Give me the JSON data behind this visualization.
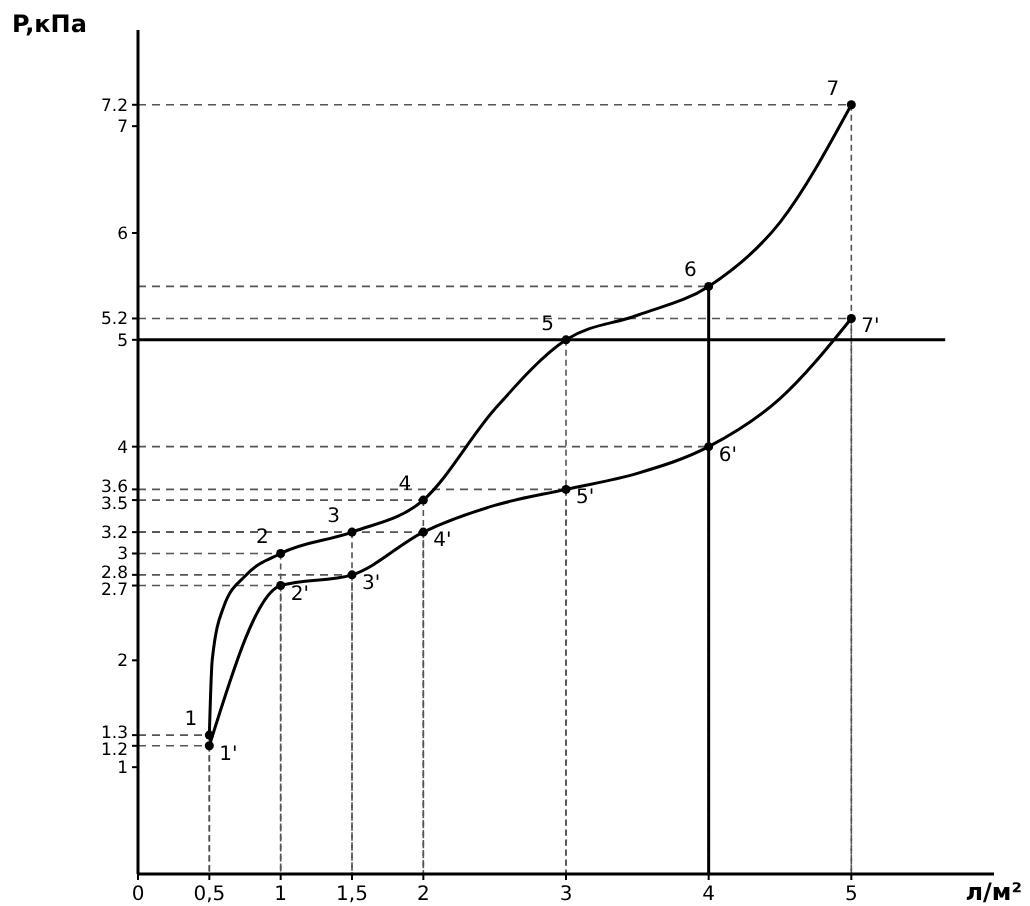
{
  "chart_data": {
    "type": "line",
    "xlabel": "л/м²",
    "ylabel": "P,кПа",
    "xlim": [
      0,
      6
    ],
    "ylim": [
      0,
      7.9
    ],
    "xticks": [
      0,
      {
        "value": 0.5,
        "label": "0,5"
      },
      1,
      {
        "value": 1.5,
        "label": "1,5"
      },
      2,
      3,
      4,
      5
    ],
    "yticks": [
      1,
      1.2,
      1.3,
      2,
      2.7,
      2.8,
      3,
      3.2,
      3.5,
      3.6,
      4,
      5,
      5.2,
      6,
      7,
      7.2
    ],
    "grid": true,
    "line_style": "solid",
    "series": [
      {
        "color": "#000000",
        "x": [
          0.5,
          0.52,
          0.6,
          0.76,
          1,
          1.5,
          2,
          2.5,
          3,
          3.5,
          4,
          4.5,
          5
        ],
        "values": [
          1.3,
          2.0,
          2.5,
          2.8,
          3.0,
          3.2,
          3.5,
          4.35,
          5,
          5.23,
          5.5,
          6.1,
          7.2
        ]
      },
      {
        "color": "#000000",
        "x": [
          0.5,
          1,
          1.5,
          2,
          2.5,
          3,
          3.5,
          4,
          4.5,
          5
        ],
        "values": [
          1.2,
          2.7,
          2.8,
          3.2,
          3.45,
          3.6,
          3.75,
          4.0,
          4.45,
          5.2
        ]
      },
      {
        "type": "scatter",
        "marker": "circle",
        "color": "#000000",
        "x": [
          0.5,
          1,
          1.5,
          2,
          3,
          4,
          5
        ],
        "values": [
          1.3,
          3.0,
          3.2,
          3.5,
          5,
          5.5,
          7.2
        ]
      },
      {
        "type": "scatter",
        "marker": "circle",
        "color": "#000000",
        "x": [
          0.5,
          1,
          1.5,
          2,
          3,
          4,
          5
        ],
        "values": [
          1.2,
          2.7,
          2.8,
          3.2,
          3.6,
          4.0,
          5.2
        ]
      }
    ],
    "ref_lines": [
      {
        "axis": "y",
        "value": 5,
        "label": null,
        "color": "#000000",
        "line_style": "solid"
      },
      {
        "axis": "x",
        "value": 4,
        "label": null,
        "color": "#000000",
        "line_style": "solid"
      }
    ],
    "annotations": [
      {
        "text": "1",
        "x": 0.5,
        "y": 1.3
      },
      {
        "text": "2",
        "x": 1,
        "y": 3.0
      },
      {
        "text": "3",
        "x": 1.5,
        "y": 3.2
      },
      {
        "text": "4",
        "x": 2,
        "y": 3.5
      },
      {
        "text": "5",
        "x": 3,
        "y": 5
      },
      {
        "text": "6",
        "x": 4,
        "y": 5.5
      },
      {
        "text": "7",
        "x": 5,
        "y": 7.2
      },
      {
        "text": "1'",
        "x": 0.5,
        "y": 1.2
      },
      {
        "text": "2'",
        "x": 1,
        "y": 2.7
      },
      {
        "text": "3'",
        "x": 1.5,
        "y": 2.8
      },
      {
        "text": "4'",
        "x": 2,
        "y": 3.2
      },
      {
        "text": "5'",
        "x": 3,
        "y": 3.6
      },
      {
        "text": "6'",
        "x": 4,
        "y": 4.0
      },
      {
        "text": "7'",
        "x": 5,
        "y": 5.2
      }
    ]
  }
}
